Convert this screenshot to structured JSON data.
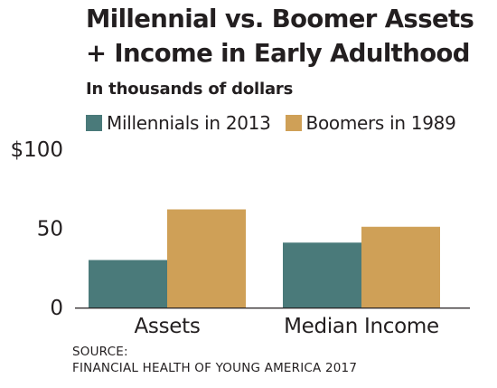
{
  "chart_data": {
    "type": "bar",
    "title": "Millennial vs. Boomer Assets + Income in Early Adulthood",
    "title_lines": [
      "Millennial vs. Boomer Assets",
      "+ Income in Early Adulthood"
    ],
    "subtitle": "In thousands of dollars",
    "categories": [
      "Assets",
      "Median Income"
    ],
    "series": [
      {
        "name": "Millennials in 2013",
        "color": "#4a7a7a",
        "values": [
          30,
          41
        ]
      },
      {
        "name": "Boomers in 1989",
        "color": "#cfa057",
        "values": [
          62,
          51
        ]
      }
    ],
    "yticks": [
      {
        "value": 0,
        "label": "0"
      },
      {
        "value": 50,
        "label": "50"
      },
      {
        "value": 100,
        "label": "$100"
      }
    ],
    "ylim": [
      0,
      100
    ],
    "xlabel": "",
    "ylabel": "",
    "grid": false,
    "legend_position": "top-left"
  },
  "source": {
    "line1": "SOURCE:",
    "line2": "FINANCIAL HEALTH OF YOUNG AMERICA 2017"
  }
}
